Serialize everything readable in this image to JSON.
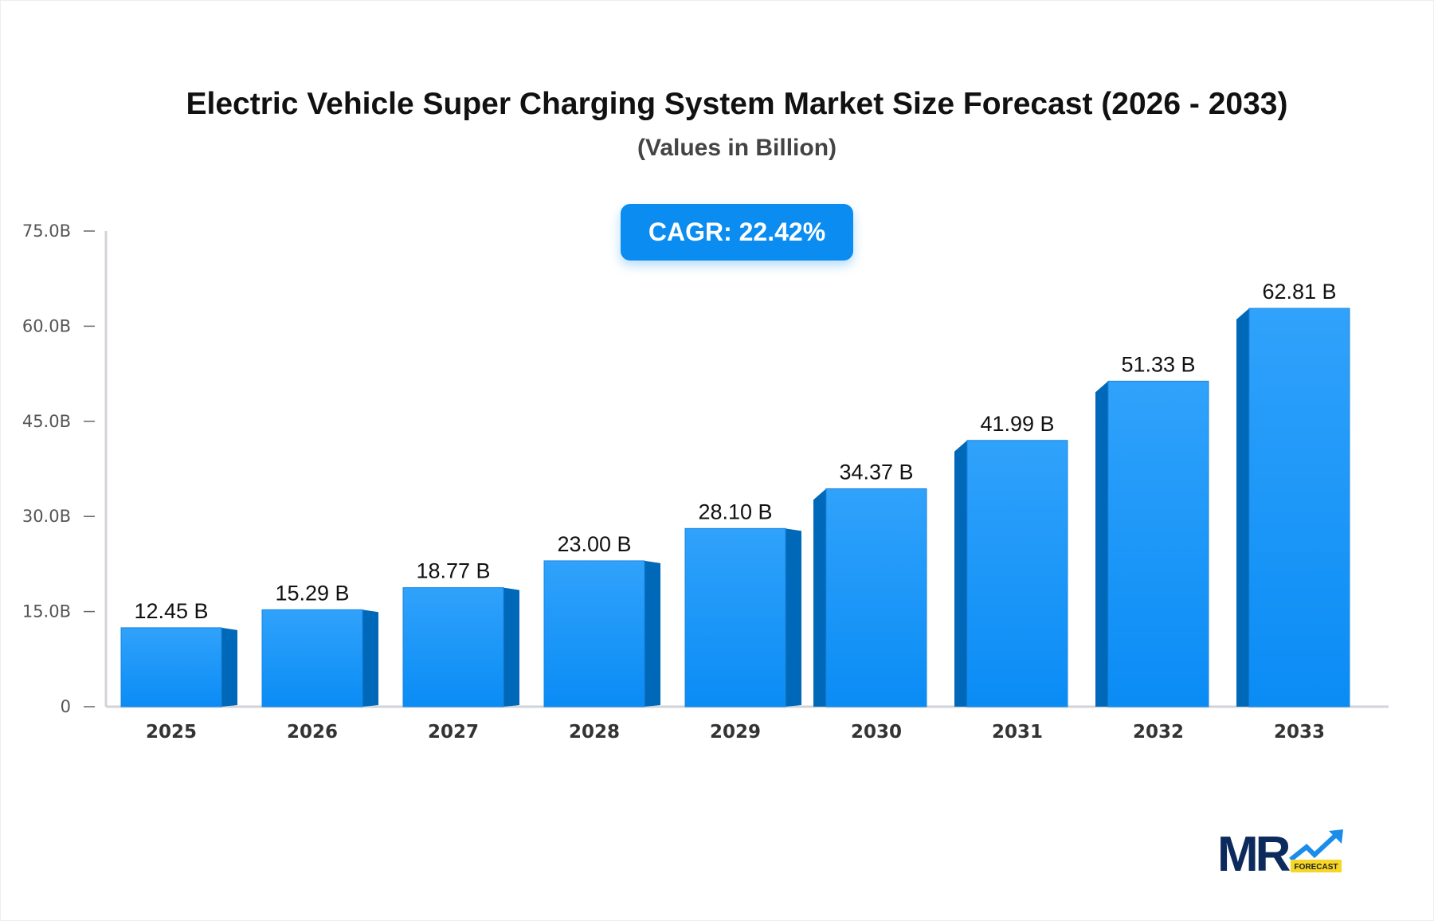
{
  "chart_data": {
    "type": "bar",
    "title": "Electric Vehicle Super Charging System Market Size Forecast (2026 - 2033)",
    "subtitle": "(Values in Billion)",
    "annotation": "CAGR: 22.42%",
    "categories": [
      "2025",
      "2026",
      "2027",
      "2028",
      "2029",
      "2030",
      "2031",
      "2032",
      "2033"
    ],
    "values": [
      12.45,
      15.29,
      18.77,
      23.0,
      28.1,
      34.37,
      41.99,
      51.33,
      62.81
    ],
    "data_labels": [
      "12.45 B",
      "15.29 B",
      "18.77 B",
      "23.00 B",
      "28.10 B",
      "34.37 B",
      "41.99 B",
      "51.33 B",
      "62.81 B"
    ],
    "ylim": [
      0,
      75
    ],
    "yticks": [
      0,
      15,
      30,
      45,
      60,
      75
    ],
    "ytick_labels": [
      "0",
      "15.0B",
      "30.0B",
      "45.0B",
      "60.0B",
      "75.0B"
    ],
    "xlabel": "",
    "ylabel": "",
    "grid": false,
    "colors": {
      "bar_front": "#1a96f5",
      "bar_side": "#0068b8",
      "axis": "#d0d3da"
    }
  },
  "logo": {
    "text": "MR",
    "badge": "FORECAST"
  }
}
